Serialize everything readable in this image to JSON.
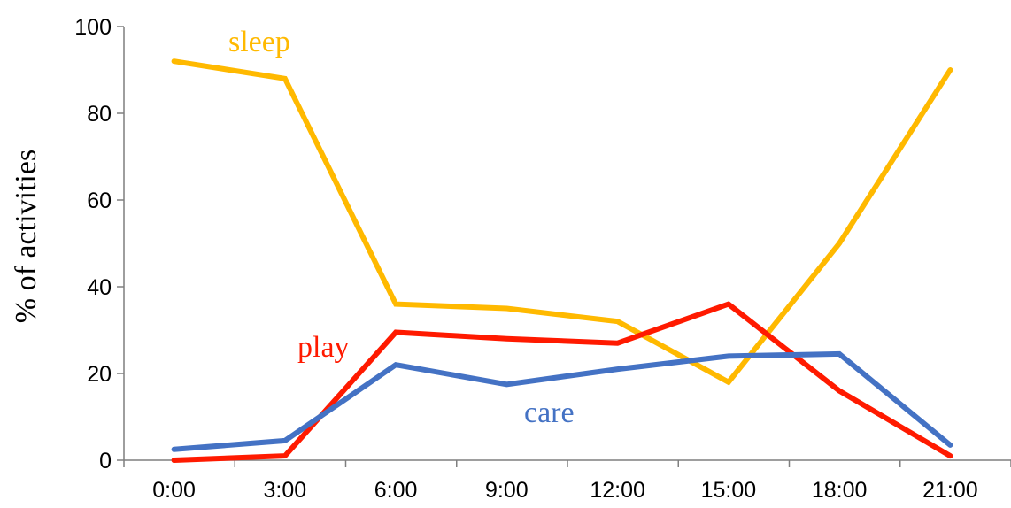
{
  "chart_data": {
    "type": "line",
    "ylabel": "% of activities",
    "xlabel": "",
    "categories": [
      "0:00",
      "3:00",
      "6:00",
      "9:00",
      "12:00",
      "15:00",
      "18:00",
      "21:00"
    ],
    "ylim": [
      0,
      100
    ],
    "yticks": [
      0,
      20,
      40,
      60,
      80,
      100
    ],
    "grid": false,
    "legend": "inline labels",
    "series": [
      {
        "name": "sleep",
        "color": "#FFB900",
        "values": [
          92,
          88,
          36,
          35,
          32,
          18,
          50,
          90
        ]
      },
      {
        "name": "play",
        "color": "#FF1A00",
        "values": [
          0,
          1,
          29.5,
          28,
          27,
          36,
          16,
          1
        ]
      },
      {
        "name": "care",
        "color": "#4472C4",
        "values": [
          2.5,
          4.5,
          22,
          17.5,
          21,
          24,
          24.5,
          3.5
        ]
      }
    ]
  }
}
